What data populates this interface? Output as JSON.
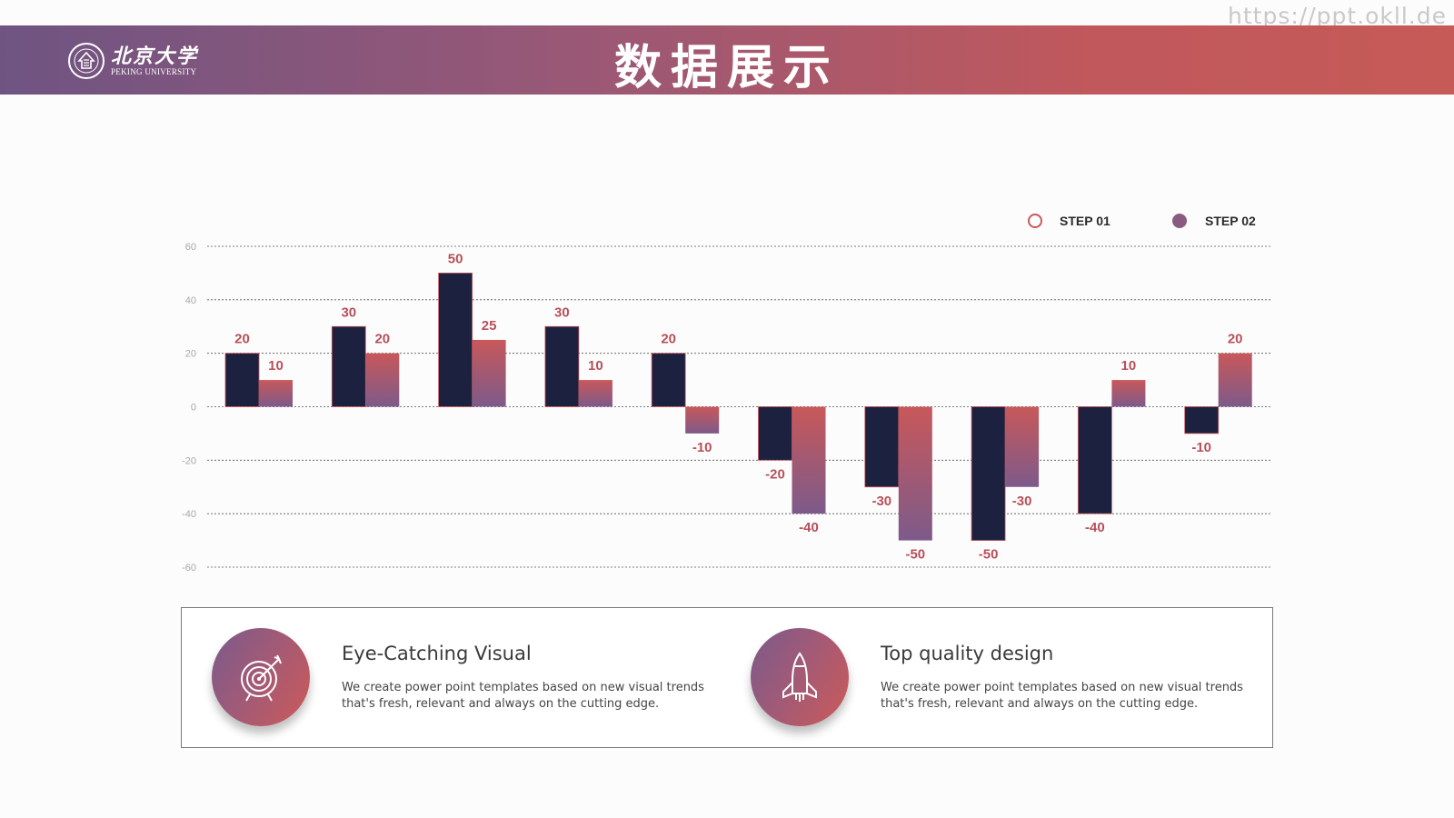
{
  "watermark": "https://ppt.okll.de",
  "header": {
    "title": "数据展示",
    "logo_cn": "北京大学",
    "logo_en": "PEKING UNIVERSITY"
  },
  "colors": {
    "step01": "#1c2140",
    "step02_top": "#c8585a",
    "step02_bottom": "#7d5a8a",
    "label": "#b7505a"
  },
  "chart_data": {
    "type": "bar",
    "title": "",
    "xlabel": "",
    "ylabel": "",
    "ylim": [
      -60,
      60
    ],
    "yticks": [
      60,
      40,
      20,
      0,
      -20,
      -40,
      -60
    ],
    "grid": true,
    "legend_position": "top-right",
    "categories": [
      "",
      "",
      "",
      "",
      "",
      "",
      "",
      "",
      "",
      ""
    ],
    "series": [
      {
        "name": "STEP 01",
        "values": [
          20,
          30,
          50,
          30,
          20,
          -20,
          -30,
          -50,
          -40,
          -10
        ]
      },
      {
        "name": "STEP 02",
        "values": [
          10,
          20,
          25,
          10,
          -10,
          -40,
          -50,
          -30,
          10,
          20
        ]
      }
    ]
  },
  "features": [
    {
      "icon": "target-icon",
      "title": "Eye-Catching Visual",
      "description": "We create power point templates based on new visual trends that's fresh, relevant and always on the cutting edge."
    },
    {
      "icon": "rocket-icon",
      "title": "Top quality design",
      "description": "We create power point templates based on new visual trends that's fresh, relevant and always on the cutting edge."
    }
  ]
}
